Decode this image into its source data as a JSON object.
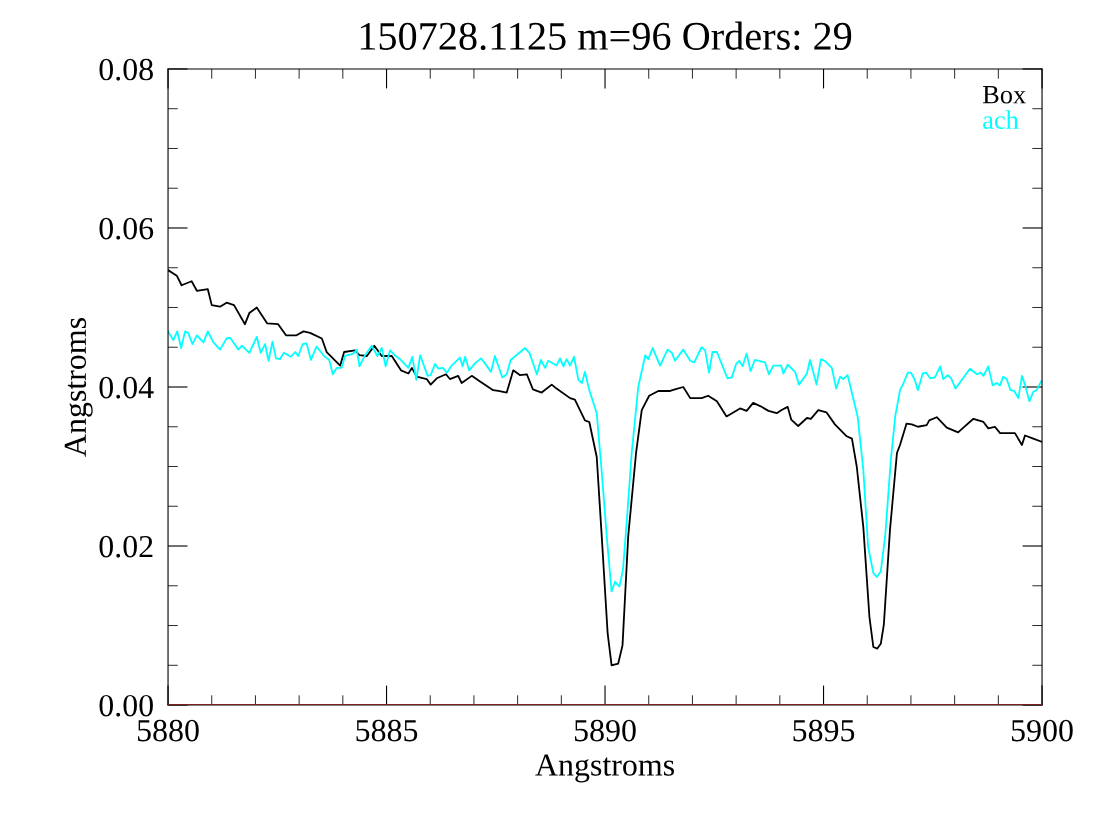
{
  "chart_data": {
    "type": "line",
    "title": "150728.1125 m=96 Orders: 29",
    "xlabel": "Angstroms",
    "ylabel": "Angstroms",
    "xlim": [
      5880,
      5900
    ],
    "xticks": [
      5880,
      5885,
      5890,
      5895,
      5900
    ],
    "ylim": [
      0,
      0.08
    ],
    "yticks": [
      {
        "value": 0,
        "label": "0.00"
      },
      {
        "value": 0.02,
        "label": "0.02"
      },
      {
        "value": 0.04,
        "label": "0.04"
      },
      {
        "value": 0.06,
        "label": "0.06"
      },
      {
        "value": 0.08,
        "label": "0.08"
      }
    ],
    "grid": false,
    "legend": "top right",
    "marker": "none",
    "line_style": "solid",
    "ref_lines": [
      {
        "axis": "y",
        "value": 0,
        "color": "#7f1f1f"
      }
    ],
    "series": [
      {
        "name": "Box",
        "color": "#000000",
        "x": [
          5880.0,
          5880.2,
          5880.31,
          5880.54,
          5880.66,
          5880.91,
          5881.0,
          5881.19,
          5881.34,
          5881.51,
          5881.76,
          5881.86,
          5882.03,
          5882.27,
          5882.52,
          5882.7,
          5882.94,
          5883.1,
          5883.25,
          5883.52,
          5883.63,
          5883.94,
          5884.03,
          5884.28,
          5884.38,
          5884.55,
          5884.72,
          5884.89,
          5885.12,
          5885.33,
          5885.5,
          5885.58,
          5885.69,
          5885.92,
          5886.01,
          5886.15,
          5886.36,
          5886.45,
          5886.64,
          5886.72,
          5886.95,
          5887.14,
          5887.44,
          5887.56,
          5887.75,
          5887.9,
          5888.05,
          5888.21,
          5888.35,
          5888.55,
          5888.78,
          5888.89,
          5889.2,
          5889.31,
          5889.54,
          5889.64,
          5889.81,
          5889.92,
          5890.06,
          5890.15,
          5890.3,
          5890.4,
          5890.53,
          5890.71,
          5890.84,
          5891.01,
          5891.22,
          5891.49,
          5891.6,
          5891.79,
          5891.95,
          5892.21,
          5892.36,
          5892.56,
          5892.78,
          5893.09,
          5893.24,
          5893.39,
          5893.55,
          5893.74,
          5893.93,
          5894.04,
          5894.18,
          5894.26,
          5894.42,
          5894.62,
          5894.71,
          5894.88,
          5895.07,
          5895.26,
          5895.53,
          5895.65,
          5895.76,
          5895.91,
          5896.05,
          5896.14,
          5896.23,
          5896.31,
          5896.38,
          5896.52,
          5896.68,
          5896.75,
          5896.9,
          5897.02,
          5897.16,
          5897.36,
          5897.42,
          5897.59,
          5897.82,
          5898.08,
          5898.2,
          5898.43,
          5898.66,
          5898.77,
          5898.92,
          5899.04,
          5899.38,
          5899.54,
          5899.61,
          5899.8,
          5900.0
        ],
        "values": [
          0.0547,
          0.054,
          0.0528,
          0.0533,
          0.0521,
          0.0523,
          0.0503,
          0.0501,
          0.0506,
          0.0503,
          0.0479,
          0.0493,
          0.05,
          0.048,
          0.0479,
          0.0465,
          0.0465,
          0.047,
          0.0468,
          0.0461,
          0.0444,
          0.0427,
          0.0444,
          0.0446,
          0.044,
          0.0439,
          0.0452,
          0.0439,
          0.0439,
          0.0421,
          0.0417,
          0.0424,
          0.0413,
          0.041,
          0.0403,
          0.0411,
          0.0416,
          0.041,
          0.0414,
          0.0405,
          0.0414,
          0.0407,
          0.0396,
          0.0395,
          0.0393,
          0.0421,
          0.0415,
          0.0416,
          0.0397,
          0.0393,
          0.0403,
          0.0398,
          0.0386,
          0.0384,
          0.0358,
          0.0356,
          0.0312,
          0.0216,
          0.009,
          0.005,
          0.0052,
          0.0075,
          0.0212,
          0.0317,
          0.0371,
          0.0389,
          0.0395,
          0.0395,
          0.0397,
          0.04,
          0.0386,
          0.0386,
          0.0389,
          0.0382,
          0.0363,
          0.0373,
          0.037,
          0.038,
          0.0376,
          0.037,
          0.0367,
          0.0371,
          0.0375,
          0.0359,
          0.0351,
          0.0361,
          0.036,
          0.0371,
          0.0368,
          0.0353,
          0.0338,
          0.0335,
          0.03,
          0.0224,
          0.0111,
          0.0073,
          0.0071,
          0.0077,
          0.0101,
          0.022,
          0.0317,
          0.0327,
          0.0354,
          0.0353,
          0.035,
          0.0352,
          0.0358,
          0.0362,
          0.0349,
          0.0343,
          0.0349,
          0.036,
          0.0356,
          0.0348,
          0.035,
          0.0342,
          0.0342,
          0.0327,
          0.0339,
          0.0335,
          0.0331
        ]
      },
      {
        "name": "ach",
        "color": "#00ffff",
        "x": [
          5880.0,
          5880.12,
          5880.21,
          5880.3,
          5880.39,
          5880.46,
          5880.56,
          5880.66,
          5880.81,
          5880.91,
          5881.04,
          5881.19,
          5881.34,
          5881.42,
          5881.61,
          5881.69,
          5881.86,
          5882.03,
          5882.12,
          5882.22,
          5882.3,
          5882.39,
          5882.47,
          5882.56,
          5882.65,
          5882.81,
          5882.91,
          5882.98,
          5883.08,
          5883.17,
          5883.27,
          5883.4,
          5883.57,
          5883.69,
          5883.77,
          5883.86,
          5883.97,
          5884.05,
          5884.24,
          5884.32,
          5884.38,
          5884.51,
          5884.66,
          5884.79,
          5884.89,
          5884.98,
          5885.08,
          5885.19,
          5885.31,
          5885.5,
          5885.59,
          5885.68,
          5885.77,
          5885.94,
          5886.01,
          5886.11,
          5886.19,
          5886.29,
          5886.38,
          5886.49,
          5886.68,
          5886.74,
          5886.8,
          5886.89,
          5887.03,
          5887.16,
          5887.25,
          5887.39,
          5887.48,
          5887.65,
          5887.75,
          5887.84,
          5888.17,
          5888.27,
          5888.44,
          5888.53,
          5888.63,
          5888.7,
          5888.89,
          5888.97,
          5889.05,
          5889.12,
          5889.2,
          5889.29,
          5889.39,
          5889.47,
          5889.54,
          5889.64,
          5889.81,
          5889.92,
          5890.04,
          5890.15,
          5890.23,
          5890.33,
          5890.41,
          5890.5,
          5890.61,
          5890.76,
          5890.92,
          5890.99,
          5891.09,
          5891.26,
          5891.43,
          5891.53,
          5891.6,
          5891.79,
          5891.95,
          5892.04,
          5892.21,
          5892.29,
          5892.38,
          5892.46,
          5892.56,
          5892.8,
          5892.9,
          5893.0,
          5893.07,
          5893.15,
          5893.24,
          5893.33,
          5893.43,
          5893.66,
          5893.75,
          5893.85,
          5894.03,
          5894.08,
          5894.18,
          5894.35,
          5894.44,
          5894.62,
          5894.69,
          5894.84,
          5894.94,
          5895.05,
          5895.19,
          5895.29,
          5895.38,
          5895.45,
          5895.55,
          5895.78,
          5895.91,
          5896.02,
          5896.14,
          5896.22,
          5896.31,
          5896.41,
          5896.54,
          5896.64,
          5896.75,
          5896.83,
          5896.93,
          5897.0,
          5897.08,
          5897.16,
          5897.27,
          5897.35,
          5897.44,
          5897.55,
          5897.67,
          5897.74,
          5897.84,
          5897.92,
          5898.02,
          5898.35,
          5898.51,
          5898.6,
          5898.66,
          5898.77,
          5898.87,
          5898.96,
          5899.04,
          5899.11,
          5899.19,
          5899.28,
          5899.36,
          5899.46,
          5899.54,
          5899.61,
          5899.71,
          5899.8,
          5899.88,
          5899.98
        ],
        "values": [
          0.047,
          0.0459,
          0.047,
          0.0449,
          0.047,
          0.0468,
          0.0454,
          0.0465,
          0.0456,
          0.047,
          0.0456,
          0.0447,
          0.0461,
          0.0462,
          0.0447,
          0.0452,
          0.0443,
          0.0463,
          0.0443,
          0.0454,
          0.0433,
          0.0457,
          0.0436,
          0.0435,
          0.0443,
          0.0438,
          0.0444,
          0.0439,
          0.0454,
          0.0455,
          0.0434,
          0.0451,
          0.0439,
          0.0434,
          0.0416,
          0.0424,
          0.0424,
          0.0439,
          0.0442,
          0.0447,
          0.0426,
          0.044,
          0.0452,
          0.0439,
          0.0449,
          0.0426,
          0.0446,
          0.044,
          0.0435,
          0.0424,
          0.0438,
          0.0409,
          0.044,
          0.0414,
          0.0415,
          0.0429,
          0.0423,
          0.0424,
          0.0418,
          0.0427,
          0.0437,
          0.0426,
          0.0438,
          0.0421,
          0.043,
          0.0436,
          0.043,
          0.0419,
          0.0439,
          0.0412,
          0.0416,
          0.0434,
          0.0449,
          0.0443,
          0.0416,
          0.0434,
          0.0424,
          0.0433,
          0.0427,
          0.0436,
          0.0426,
          0.0435,
          0.0427,
          0.0438,
          0.0409,
          0.0405,
          0.0419,
          0.0396,
          0.0367,
          0.0296,
          0.0212,
          0.0143,
          0.0155,
          0.0149,
          0.017,
          0.0233,
          0.0317,
          0.04,
          0.044,
          0.0435,
          0.0449,
          0.0427,
          0.0447,
          0.0443,
          0.0433,
          0.0447,
          0.0433,
          0.0431,
          0.045,
          0.0446,
          0.0418,
          0.0444,
          0.0444,
          0.0411,
          0.0412,
          0.0429,
          0.0433,
          0.0426,
          0.0442,
          0.042,
          0.0434,
          0.0431,
          0.0416,
          0.0427,
          0.0427,
          0.0417,
          0.0428,
          0.0419,
          0.0403,
          0.0417,
          0.0434,
          0.0403,
          0.0435,
          0.0432,
          0.0424,
          0.0398,
          0.0413,
          0.041,
          0.0415,
          0.0363,
          0.0296,
          0.0199,
          0.0166,
          0.0161,
          0.0168,
          0.0212,
          0.0308,
          0.0363,
          0.0396,
          0.0405,
          0.0418,
          0.0418,
          0.041,
          0.0396,
          0.0417,
          0.0418,
          0.0411,
          0.0412,
          0.0426,
          0.041,
          0.0415,
          0.0411,
          0.0398,
          0.0423,
          0.0416,
          0.0418,
          0.0414,
          0.0426,
          0.0402,
          0.0405,
          0.0402,
          0.0413,
          0.041,
          0.0396,
          0.0395,
          0.0386,
          0.0414,
          0.0403,
          0.0382,
          0.0394,
          0.0396,
          0.0407
        ]
      }
    ]
  }
}
